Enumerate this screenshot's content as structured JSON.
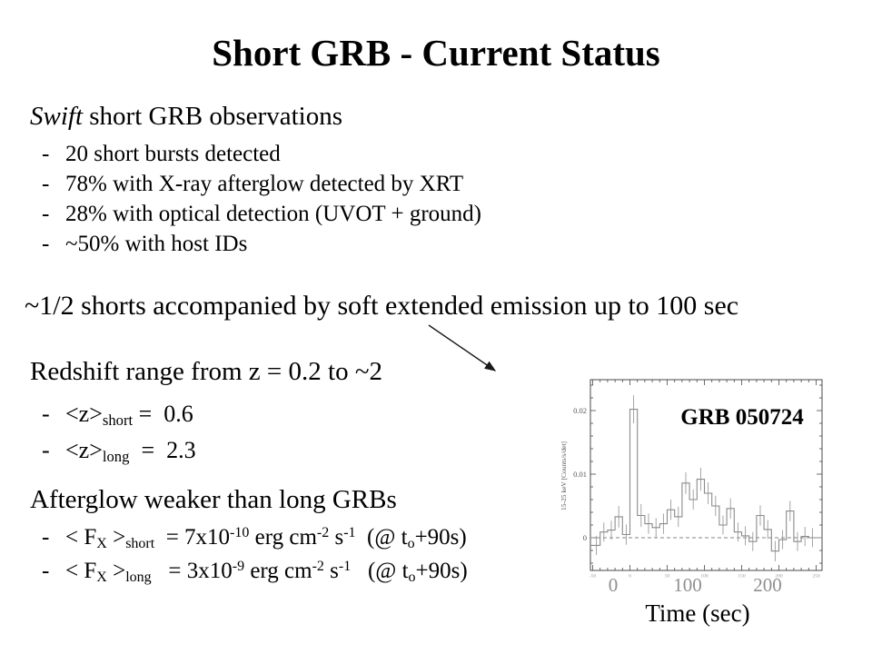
{
  "slide": {
    "title": "Short GRB - Current Status",
    "bullet_dash": "-",
    "swift_section": {
      "heading_tokens": [
        {
          "t": "Swift",
          "s": "i"
        },
        {
          "t": " short GRB observations",
          "s": "n"
        }
      ],
      "bullets": [
        "20 short bursts detected",
        "78% with X-ray afterglow detected by XRT",
        "28% with optical detection (UVOT + ground)",
        "~50% with host IDs"
      ]
    },
    "extended_line": "~1/2 shorts accompanied by soft extended emission up to 100 sec",
    "redshift_section": {
      "heading": "Redshift range from z = 0.2 to ~2",
      "bullets_tokens": [
        [
          {
            "t": "<z>",
            "s": "n"
          },
          {
            "t": "short",
            "s": "sub"
          },
          {
            "t": " =  0.6",
            "s": "n"
          }
        ],
        [
          {
            "t": "<z>",
            "s": "n"
          },
          {
            "t": "long",
            "s": "sub"
          },
          {
            "t": "  =  2.3",
            "s": "n"
          }
        ]
      ]
    },
    "afterglow_section": {
      "heading": "Afterglow weaker than long GRBs",
      "bullets_tokens": [
        [
          {
            "t": "< F",
            "s": "n"
          },
          {
            "t": "X",
            "s": "sub"
          },
          {
            "t": " >",
            "s": "n"
          },
          {
            "t": "short",
            "s": "sub"
          },
          {
            "t": "  = 7x10",
            "s": "n"
          },
          {
            "t": "-10",
            "s": "sup"
          },
          {
            "t": " erg cm",
            "s": "n"
          },
          {
            "t": "-2",
            "s": "sup"
          },
          {
            "t": " s",
            "s": "n"
          },
          {
            "t": "-1",
            "s": "sup"
          },
          {
            "t": "  (@ t",
            "s": "n"
          },
          {
            "t": "o",
            "s": "sub"
          },
          {
            "t": "+90s)",
            "s": "n"
          }
        ],
        [
          {
            "t": "< F",
            "s": "n"
          },
          {
            "t": "X",
            "s": "sub"
          },
          {
            "t": " >",
            "s": "n"
          },
          {
            "t": "long",
            "s": "sub"
          },
          {
            "t": "   = 3x10",
            "s": "n"
          },
          {
            "t": "-9",
            "s": "sup"
          },
          {
            "t": " erg cm",
            "s": "n"
          },
          {
            "t": "-2",
            "s": "sup"
          },
          {
            "t": " s",
            "s": "n"
          },
          {
            "t": "-1",
            "s": "sup"
          },
          {
            "t": "   (@ t",
            "s": "n"
          },
          {
            "t": "o",
            "s": "sub"
          },
          {
            "t": "+90s)",
            "s": "n"
          }
        ]
      ]
    }
  },
  "chart": {
    "annotation": "GRB 050724",
    "ylabel": "15-25 keV [Counts/s/det]",
    "xlabel": "Time (sec)",
    "ytick_labels": [
      "0.02",
      "0.01",
      "0"
    ],
    "xtick_labels_large": [
      "0",
      "100",
      "200"
    ]
  },
  "chart_data": {
    "type": "line",
    "subtype": "step-histogram-lightcurve-with-error-bars",
    "title": "GRB 050724",
    "xlabel": "Time (sec)",
    "ylabel": "15-25 keV [Counts/s/det]",
    "xlim": [
      -52,
      258
    ],
    "ylim": [
      -0.005,
      0.0249
    ],
    "xticks": [
      -50,
      0,
      50,
      100,
      150,
      200,
      250
    ],
    "yticks": [
      0,
      0.01,
      0.02
    ],
    "grid": false,
    "zero_line": "dashed",
    "bin_width": 10,
    "bins": [
      [
        -50,
        -0.0012,
        0.0015
      ],
      [
        -40,
        0.0009,
        0.0015
      ],
      [
        -30,
        0.0012,
        0.0015
      ],
      [
        -20,
        0.0033,
        0.0017
      ],
      [
        -10,
        0.0005,
        0.0016
      ],
      [
        0,
        0.0202,
        0.0022
      ],
      [
        10,
        0.0035,
        0.0018
      ],
      [
        20,
        0.0022,
        0.0016
      ],
      [
        30,
        0.0016,
        0.0015
      ],
      [
        40,
        0.0022,
        0.0016
      ],
      [
        50,
        0.0044,
        0.0016
      ],
      [
        60,
        0.0033,
        0.0016
      ],
      [
        70,
        0.0086,
        0.0017
      ],
      [
        80,
        0.006,
        0.0016
      ],
      [
        90,
        0.0092,
        0.0018
      ],
      [
        100,
        0.007,
        0.0017
      ],
      [
        110,
        0.005,
        0.0016
      ],
      [
        120,
        0.002,
        0.0015
      ],
      [
        130,
        0.0046,
        0.0016
      ],
      [
        140,
        0.0009,
        0.0015
      ],
      [
        150,
        0.0003,
        0.0015
      ],
      [
        160,
        -0.0006,
        0.0015
      ],
      [
        170,
        0.0035,
        0.0016
      ],
      [
        180,
        0.0013,
        0.0015
      ],
      [
        190,
        -0.0021,
        0.0016
      ],
      [
        200,
        -0.0003,
        0.0015
      ],
      [
        210,
        0.0042,
        0.0016
      ],
      [
        220,
        -0.0006,
        0.0015
      ],
      [
        230,
        0.0002,
        0.0015
      ],
      [
        240,
        0.0,
        0.0015
      ]
    ]
  }
}
